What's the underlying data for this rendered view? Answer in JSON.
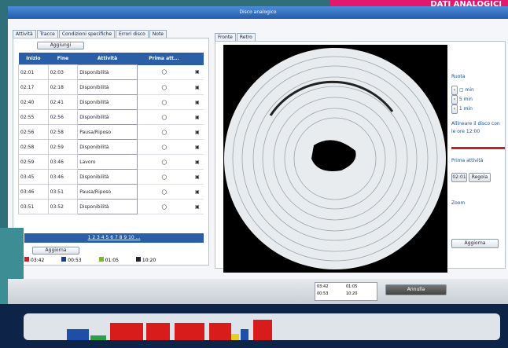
{
  "banner": "DATI ANALOGICI",
  "window": {
    "title": "Disco analogico"
  },
  "left_tabs": [
    "Attività",
    "Tracce",
    "Condizioni specifiche",
    "Errori disco",
    "Note"
  ],
  "right_tabs": [
    "Fronte",
    "Retro"
  ],
  "add_button": "Aggiungi",
  "table": {
    "headers": [
      "Inizio",
      "Fine",
      "Attività",
      "Prima att..."
    ],
    "rows": [
      [
        "02:01",
        "02:03",
        "Disponibilità"
      ],
      [
        "02:17",
        "02:18",
        "Disponibilità"
      ],
      [
        "02:40",
        "02:41",
        "Disponibilità"
      ],
      [
        "02:55",
        "02:56",
        "Disponibilità"
      ],
      [
        "02:56",
        "02:58",
        "Pausa/Riposo"
      ],
      [
        "02:58",
        "02:59",
        "Disponibilità"
      ],
      [
        "02:59",
        "03:46",
        "Lavoro"
      ],
      [
        "03:45",
        "03:46",
        "Disponibilità"
      ],
      [
        "03:46",
        "03:51",
        "Pausa/Riposo"
      ],
      [
        "03:51",
        "03:52",
        "Disponibilità"
      ]
    ]
  },
  "pagination": "1 2 3 4 5 6 7 8 9 10 ...",
  "update_button": "Aggiorna",
  "summary": [
    "03:42",
    "00:53",
    "01:05",
    "10:20"
  ],
  "controls": {
    "rotate": "Ruota",
    "min": "min",
    "five_min": "5 min",
    "one_min": "1 min",
    "align": "Allineare il disco con le ore 12:00",
    "first_activity": "Prima attività",
    "first_time": "02:01",
    "adjust": "Regola",
    "zoom": "Zoom",
    "update": "Aggiorna"
  },
  "footer": {
    "legend": [
      "03:42",
      "01:05",
      "00:53",
      "10:20"
    ],
    "cancel": "Annulla"
  }
}
